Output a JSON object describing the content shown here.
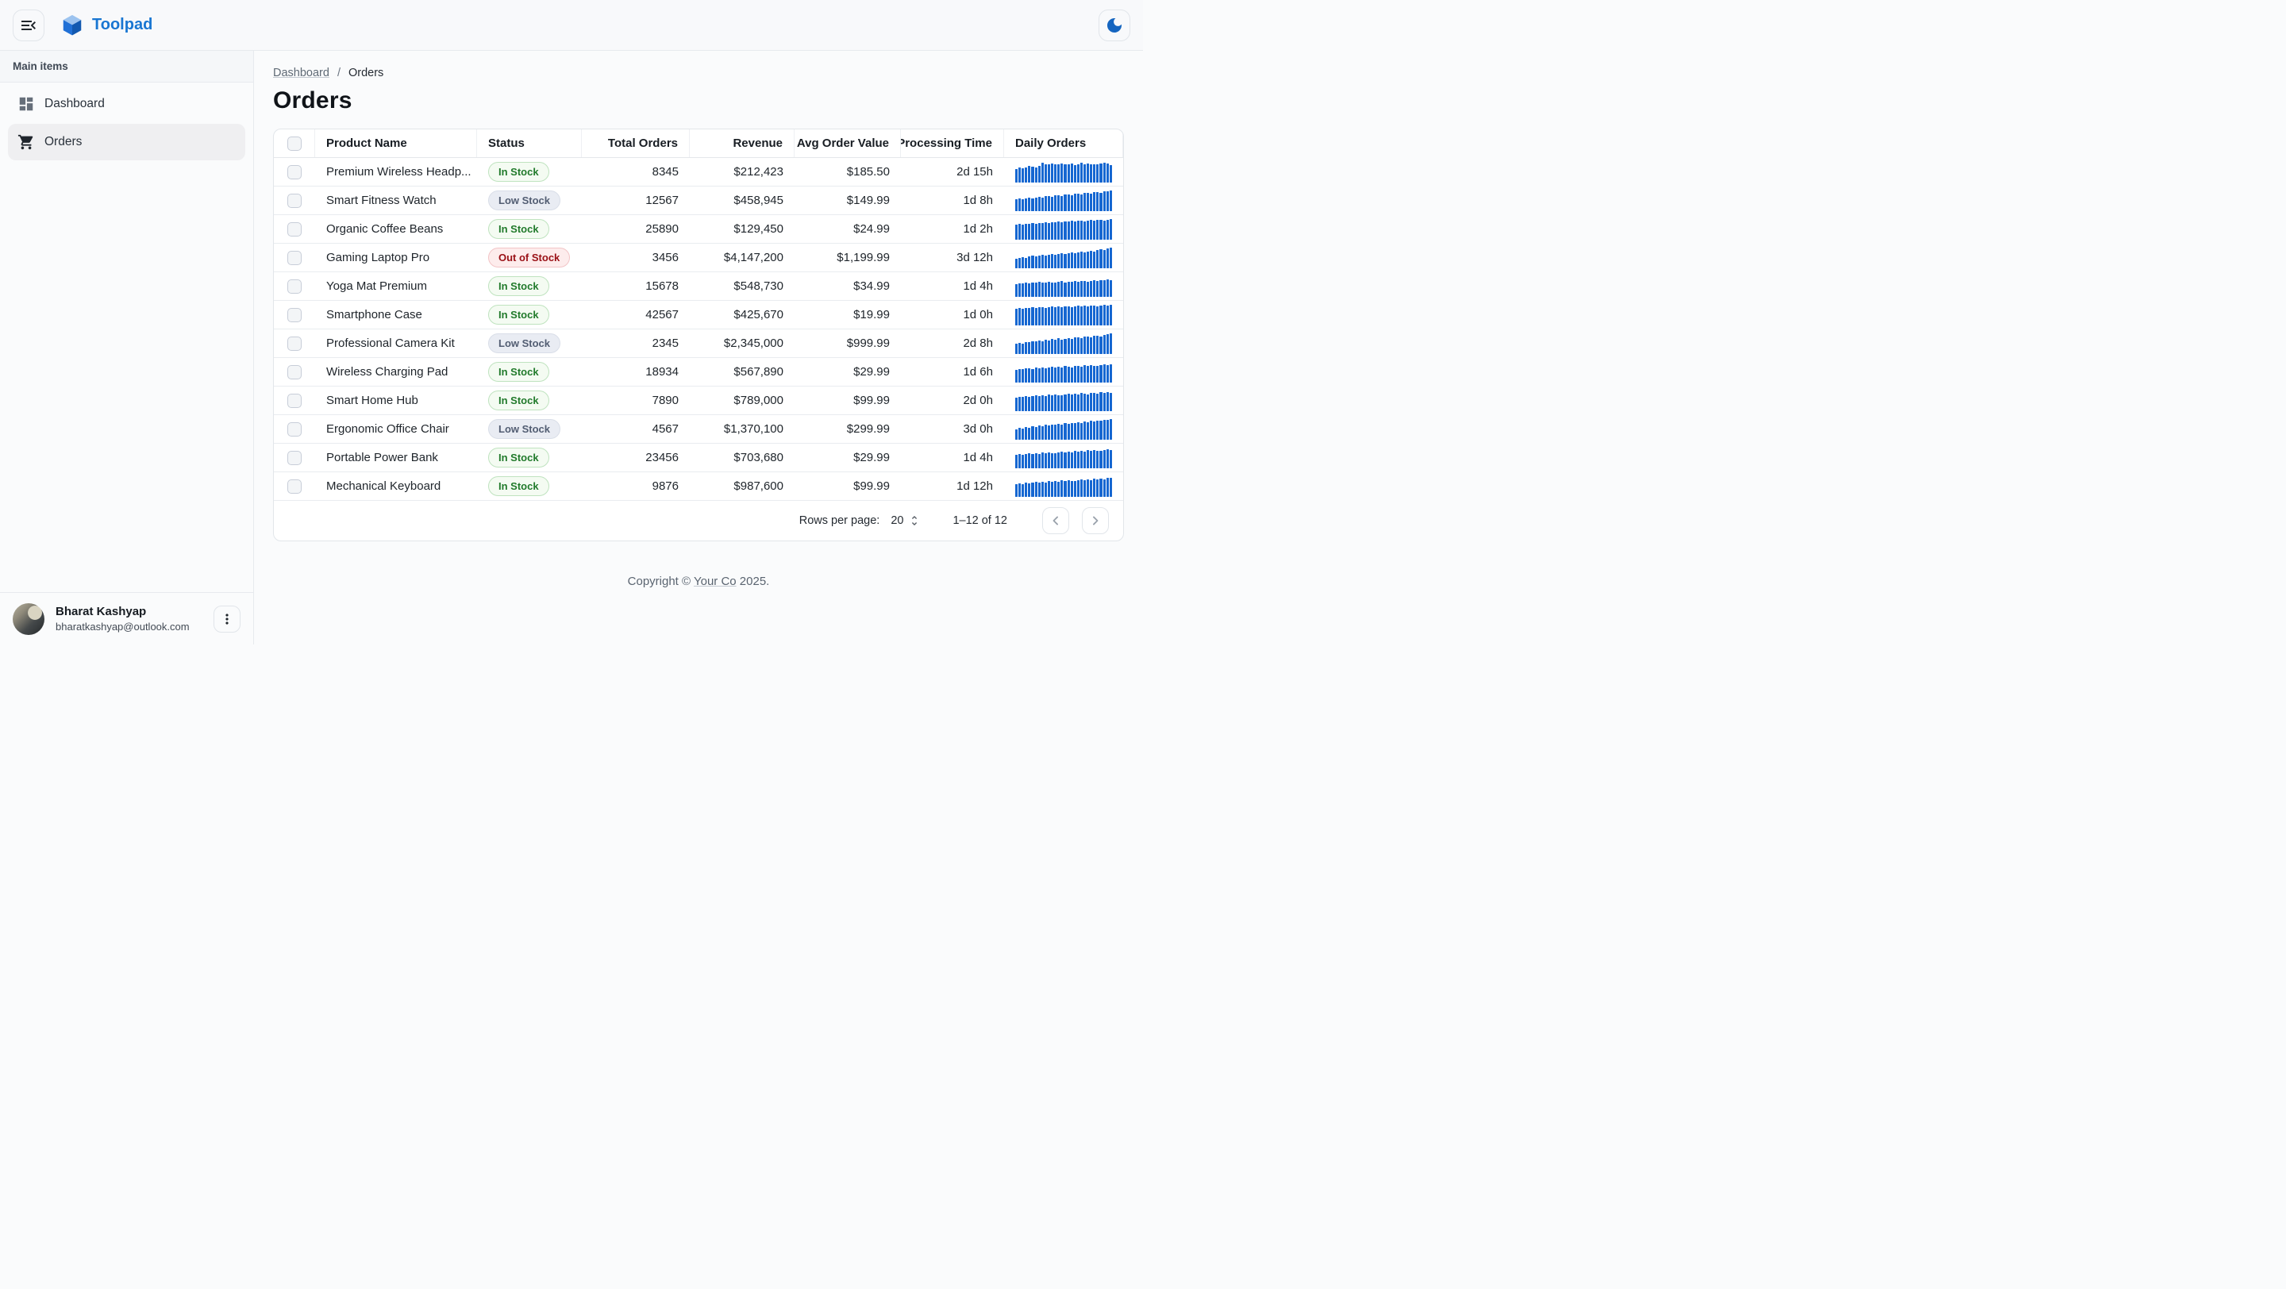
{
  "app": {
    "title": "Toolpad"
  },
  "theme": {
    "brand_blue": "#1976d2",
    "spark_blue": "#1667d1",
    "moon_blue": "#1565c0",
    "badge_in_green": "#217a2b",
    "badge_out_red": "#9a1016"
  },
  "appbar": {
    "collapse_icon": "menu-open-icon",
    "logo_icon": "toolpad-cube-icon",
    "theme_toggle_icon": "moon-icon"
  },
  "sidebar": {
    "section_label": "Main items",
    "items": [
      {
        "label": "Dashboard",
        "icon": "dashboard-icon",
        "selected": false
      },
      {
        "label": "Orders",
        "icon": "cart-icon",
        "selected": true
      }
    ],
    "user": {
      "name": "Bharat Kashyap",
      "email": "bharatkashyap@outlook.com"
    }
  },
  "breadcrumb": {
    "link": "Dashboard",
    "separator": "/",
    "current": "Orders"
  },
  "page": {
    "title": "Orders"
  },
  "table": {
    "columns": [
      "",
      "Product Name",
      "Status",
      "Total Orders",
      "Revenue",
      "Avg Order Value",
      "Processing Time",
      "Daily Orders"
    ],
    "rows": [
      {
        "product": "Premium Wireless Headp...",
        "status": "In Stock",
        "variant": "in",
        "total": "8345",
        "revenue": "$212,423",
        "avg": "$185.50",
        "processing": "2d 15h",
        "daily": [
          62,
          70,
          66,
          72,
          78,
          74,
          70,
          80,
          95,
          88,
          85,
          90,
          86,
          88,
          92,
          85,
          88,
          90,
          84,
          88,
          95,
          86,
          90,
          85,
          88,
          86,
          90,
          96,
          92,
          84
        ]
      },
      {
        "product": "Smart Fitness Watch",
        "status": "Low Stock",
        "variant": "low",
        "total": "12567",
        "revenue": "$458,945",
        "avg": "$149.99",
        "processing": "1d 8h",
        "daily": [
          55,
          58,
          56,
          60,
          62,
          60,
          65,
          68,
          64,
          70,
          72,
          68,
          74,
          76,
          72,
          78,
          80,
          76,
          82,
          84,
          80,
          86,
          88,
          84,
          90,
          92,
          88,
          94,
          96,
          100
        ]
      },
      {
        "product": "Organic Coffee Beans",
        "status": "In Stock",
        "variant": "in",
        "total": "25890",
        "revenue": "$129,450",
        "avg": "$24.99",
        "processing": "1d 2h",
        "daily": [
          70,
          74,
          72,
          76,
          74,
          78,
          76,
          80,
          78,
          82,
          80,
          84,
          82,
          86,
          84,
          88,
          86,
          90,
          88,
          92,
          90,
          88,
          92,
          94,
          90,
          94,
          96,
          92,
          96,
          98
        ]
      },
      {
        "product": "Gaming Laptop Pro",
        "status": "Out of Stock",
        "variant": "out",
        "total": "3456",
        "revenue": "$4,147,200",
        "avg": "$1,199.99",
        "processing": "3d 12h",
        "daily": [
          45,
          48,
          52,
          50,
          55,
          58,
          54,
          60,
          64,
          58,
          62,
          66,
          62,
          68,
          70,
          66,
          72,
          74,
          70,
          76,
          78,
          74,
          80,
          84,
          80,
          86,
          90,
          86,
          94,
          100
        ]
      },
      {
        "product": "Yoga Mat Premium",
        "status": "In Stock",
        "variant": "in",
        "total": "15678",
        "revenue": "$548,730",
        "avg": "$34.99",
        "processing": "1d 4h",
        "daily": [
          60,
          64,
          62,
          66,
          64,
          68,
          66,
          70,
          66,
          68,
          72,
          68,
          66,
          70,
          74,
          68,
          72,
          70,
          74,
          72,
          76,
          74,
          70,
          76,
          78,
          74,
          80,
          78,
          82,
          80
        ]
      },
      {
        "product": "Smartphone Case",
        "status": "In Stock",
        "variant": "in",
        "total": "42567",
        "revenue": "$425,670",
        "avg": "$19.99",
        "processing": "1d 0h",
        "daily": [
          78,
          82,
          80,
          84,
          82,
          86,
          84,
          88,
          86,
          84,
          88,
          90,
          86,
          90,
          88,
          92,
          90,
          86,
          92,
          94,
          90,
          94,
          92,
          96,
          94,
          90,
          96,
          98,
          94,
          100
        ]
      },
      {
        "product": "Professional Camera Kit",
        "status": "Low Stock",
        "variant": "low",
        "total": "2345",
        "revenue": "$2,345,000",
        "avg": "$999.99",
        "processing": "2d 8h",
        "daily": [
          48,
          52,
          50,
          56,
          54,
          60,
          58,
          64,
          60,
          66,
          64,
          70,
          68,
          74,
          66,
          72,
          76,
          70,
          78,
          80,
          76,
          82,
          84,
          80,
          86,
          88,
          84,
          92,
          96,
          100
        ]
      },
      {
        "product": "Wireless Charging Pad",
        "status": "In Stock",
        "variant": "in",
        "total": "18934",
        "revenue": "$567,890",
        "avg": "$29.99",
        "processing": "1d 6h",
        "daily": [
          60,
          64,
          62,
          66,
          68,
          64,
          70,
          66,
          72,
          68,
          70,
          74,
          70,
          76,
          72,
          78,
          74,
          72,
          78,
          80,
          76,
          82,
          78,
          84,
          80,
          78,
          84,
          86,
          82,
          88
        ]
      },
      {
        "product": "Smart Home Hub",
        "status": "In Stock",
        "variant": "in",
        "total": "7890",
        "revenue": "$789,000",
        "avg": "$99.99",
        "processing": "2d 0h",
        "daily": [
          64,
          68,
          66,
          70,
          68,
          72,
          74,
          70,
          76,
          72,
          78,
          74,
          80,
          76,
          74,
          80,
          82,
          78,
          84,
          80,
          86,
          82,
          80,
          86,
          88,
          84,
          90,
          86,
          92,
          88
        ]
      },
      {
        "product": "Ergonomic Office Chair",
        "status": "Low Stock",
        "variant": "low",
        "total": "4567",
        "revenue": "$1,370,100",
        "avg": "$299.99",
        "processing": "3d 0h",
        "daily": [
          50,
          54,
          52,
          58,
          56,
          62,
          60,
          66,
          64,
          70,
          66,
          72,
          70,
          76,
          72,
          78,
          74,
          80,
          78,
          84,
          80,
          86,
          84,
          90,
          86,
          92,
          90,
          96,
          94,
          100
        ]
      },
      {
        "product": "Portable Power Bank",
        "status": "In Stock",
        "variant": "in",
        "total": "23456",
        "revenue": "$703,680",
        "avg": "$29.99",
        "processing": "1d 4h",
        "daily": [
          62,
          66,
          64,
          68,
          70,
          66,
          72,
          68,
          74,
          70,
          76,
          72,
          70,
          76,
          78,
          74,
          80,
          76,
          82,
          78,
          84,
          80,
          86,
          82,
          88,
          84,
          82,
          88,
          90,
          86
        ]
      },
      {
        "product": "Mechanical Keyboard",
        "status": "In Stock",
        "variant": "in",
        "total": "9876",
        "revenue": "$987,600",
        "avg": "$99.99",
        "processing": "1d 12h",
        "daily": [
          58,
          62,
          60,
          66,
          64,
          68,
          70,
          66,
          72,
          68,
          74,
          70,
          76,
          72,
          78,
          74,
          80,
          76,
          74,
          80,
          82,
          78,
          84,
          80,
          86,
          82,
          88,
          84,
          90,
          92
        ]
      }
    ]
  },
  "pagination": {
    "label": "Rows per page:",
    "value": "20",
    "range": "1–12 of 12"
  },
  "footer": {
    "prefix": "Copyright © ",
    "link": "Your Co",
    "suffix": " 2025."
  }
}
